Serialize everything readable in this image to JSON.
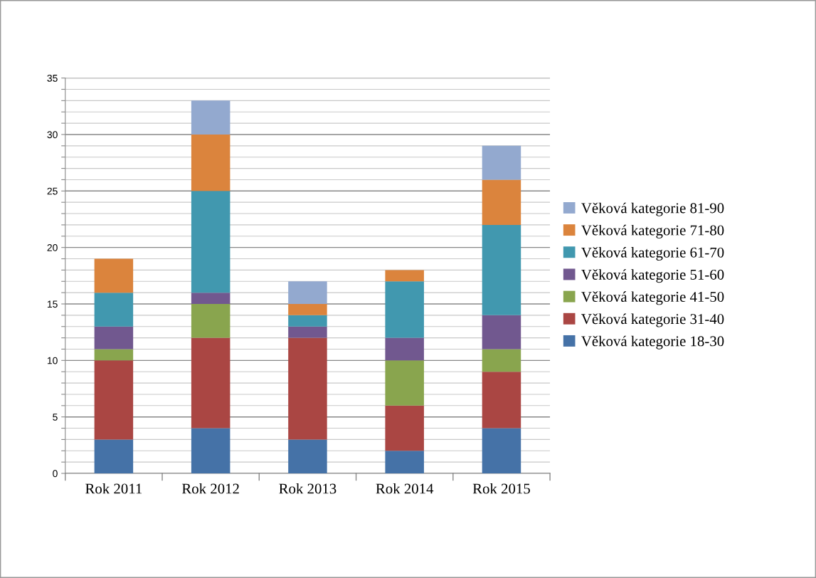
{
  "chart_data": {
    "type": "bar",
    "stacked": true,
    "categories": [
      "Rok 2011",
      "Rok 2012",
      "Rok 2013",
      "Rok 2014",
      "Rok 2015"
    ],
    "series": [
      {
        "name": "Věková kategorie 18-30",
        "color": "#4572a7",
        "values": [
          3,
          4,
          3,
          2,
          4
        ]
      },
      {
        "name": "Věková kategorie 31-40",
        "color": "#aa4643",
        "values": [
          7,
          8,
          9,
          4,
          5
        ]
      },
      {
        "name": "Věková kategorie 41-50",
        "color": "#89a54e",
        "values": [
          1,
          3,
          0,
          4,
          2
        ]
      },
      {
        "name": "Věková kategorie 51-60",
        "color": "#71588f",
        "values": [
          2,
          1,
          1,
          2,
          3
        ]
      },
      {
        "name": "Věková kategorie 61-70",
        "color": "#4198af",
        "values": [
          3,
          9,
          1,
          5,
          8
        ]
      },
      {
        "name": "Věková kategorie 71-80",
        "color": "#db843d",
        "values": [
          3,
          5,
          1,
          1,
          4
        ]
      },
      {
        "name": "Věková kategorie 81-90",
        "color": "#93a9cf",
        "values": [
          0,
          3,
          2,
          0,
          3
        ]
      }
    ],
    "ylim": [
      0,
      35
    ],
    "yticks": [
      0,
      {
        "value": 1,
        "label": null
      },
      {
        "value": 2,
        "label": null
      },
      {
        "value": 3,
        "label": null
      },
      {
        "value": 4,
        "label": null
      },
      5,
      {
        "value": 6,
        "label": null
      },
      {
        "value": 7,
        "label": null
      },
      {
        "value": 8,
        "label": null
      },
      {
        "value": 9,
        "label": null
      },
      10,
      {
        "value": 11,
        "label": null
      },
      {
        "value": 12,
        "label": null
      },
      {
        "value": 13,
        "label": null
      },
      {
        "value": 14,
        "label": null
      },
      15,
      {
        "value": 16,
        "label": null
      },
      {
        "value": 17,
        "label": null
      },
      {
        "value": 18,
        "label": null
      },
      {
        "value": 19,
        "label": null
      },
      20,
      {
        "value": 21,
        "label": null
      },
      {
        "value": 22,
        "label": null
      },
      {
        "value": 23,
        "label": null
      },
      {
        "value": 24,
        "label": null
      },
      25,
      {
        "value": 26,
        "label": null
      },
      {
        "value": 27,
        "label": null
      },
      {
        "value": 28,
        "label": null
      },
      {
        "value": 29,
        "label": null
      },
      30,
      {
        "value": 31,
        "label": null
      },
      {
        "value": 32,
        "label": null
      },
      {
        "value": 33,
        "label": null
      },
      {
        "value": 34,
        "label": null
      },
      35
    ],
    "grid": "y",
    "legend": "right"
  }
}
